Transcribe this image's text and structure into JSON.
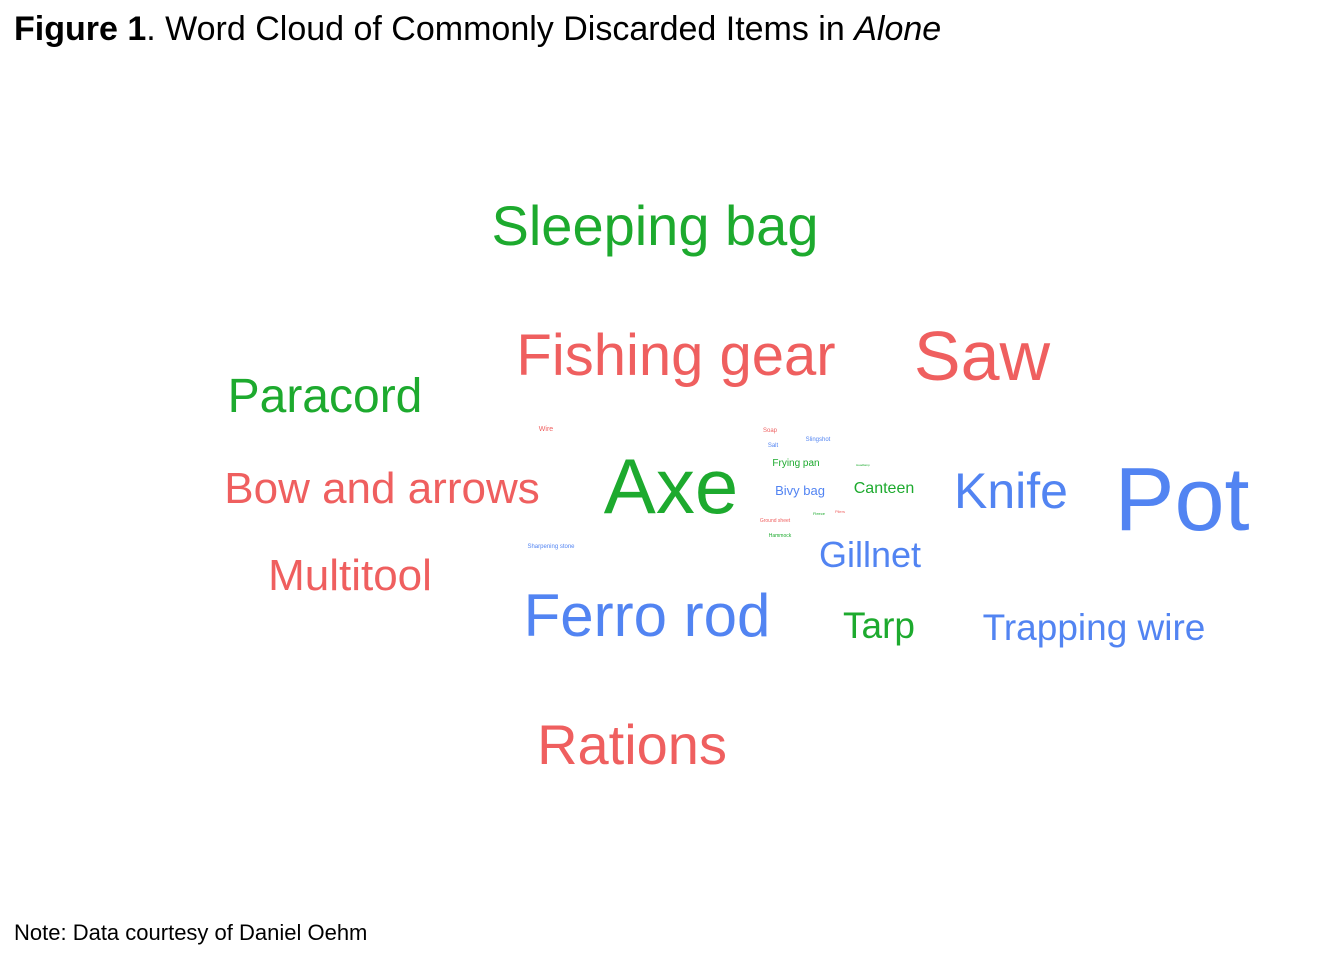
{
  "title": {
    "label": "Figure 1",
    "separator": ". ",
    "text": "Word Cloud of Commonly Discarded Items in ",
    "italic": "Alone"
  },
  "note": "Note: Data courtesy of Daniel Oehm",
  "colors": {
    "red": "#EF5F5F",
    "green": "#1DAA2E",
    "blue": "#5284F2"
  },
  "chart_data": {
    "type": "wordcloud",
    "words": [
      {
        "text": "Pot",
        "color": "blue",
        "size": 90
      },
      {
        "text": "Axe",
        "color": "green",
        "size": 78
      },
      {
        "text": "Saw",
        "color": "red",
        "size": 70
      },
      {
        "text": "Ferro rod",
        "color": "blue",
        "size": 60
      },
      {
        "text": "Fishing gear",
        "color": "red",
        "size": 58
      },
      {
        "text": "Sleeping bag",
        "color": "green",
        "size": 56
      },
      {
        "text": "Rations",
        "color": "red",
        "size": 56
      },
      {
        "text": "Knife",
        "color": "blue",
        "size": 50
      },
      {
        "text": "Paracord",
        "color": "green",
        "size": 48
      },
      {
        "text": "Bow and arrows",
        "color": "red",
        "size": 44
      },
      {
        "text": "Multitool",
        "color": "red",
        "size": 44
      },
      {
        "text": "Trapping wire",
        "color": "blue",
        "size": 37
      },
      {
        "text": "Tarp",
        "color": "green",
        "size": 37
      },
      {
        "text": "Gillnet",
        "color": "blue",
        "size": 36
      },
      {
        "text": "Canteen",
        "color": "green",
        "size": 16
      },
      {
        "text": "Bivy bag",
        "color": "blue",
        "size": 13
      },
      {
        "text": "Frying pan",
        "color": "green",
        "size": 10
      },
      {
        "text": "Slingshot",
        "color": "blue",
        "size": 6
      },
      {
        "text": "Soap",
        "color": "red",
        "size": 6
      },
      {
        "text": "Salt",
        "color": "blue",
        "size": 6
      },
      {
        "text": "Wire",
        "color": "red",
        "size": 7
      },
      {
        "text": "Sharpening stone",
        "color": "blue",
        "size": 6
      },
      {
        "text": "Hammock",
        "color": "green",
        "size": 5
      },
      {
        "text": "Ground sheet",
        "color": "red",
        "size": 5
      },
      {
        "text": "Pliers",
        "color": "red",
        "size": 4
      },
      {
        "text": "Fleece",
        "color": "green",
        "size": 4
      },
      {
        "text": "Headlamp",
        "color": "green",
        "size": 3
      }
    ]
  }
}
